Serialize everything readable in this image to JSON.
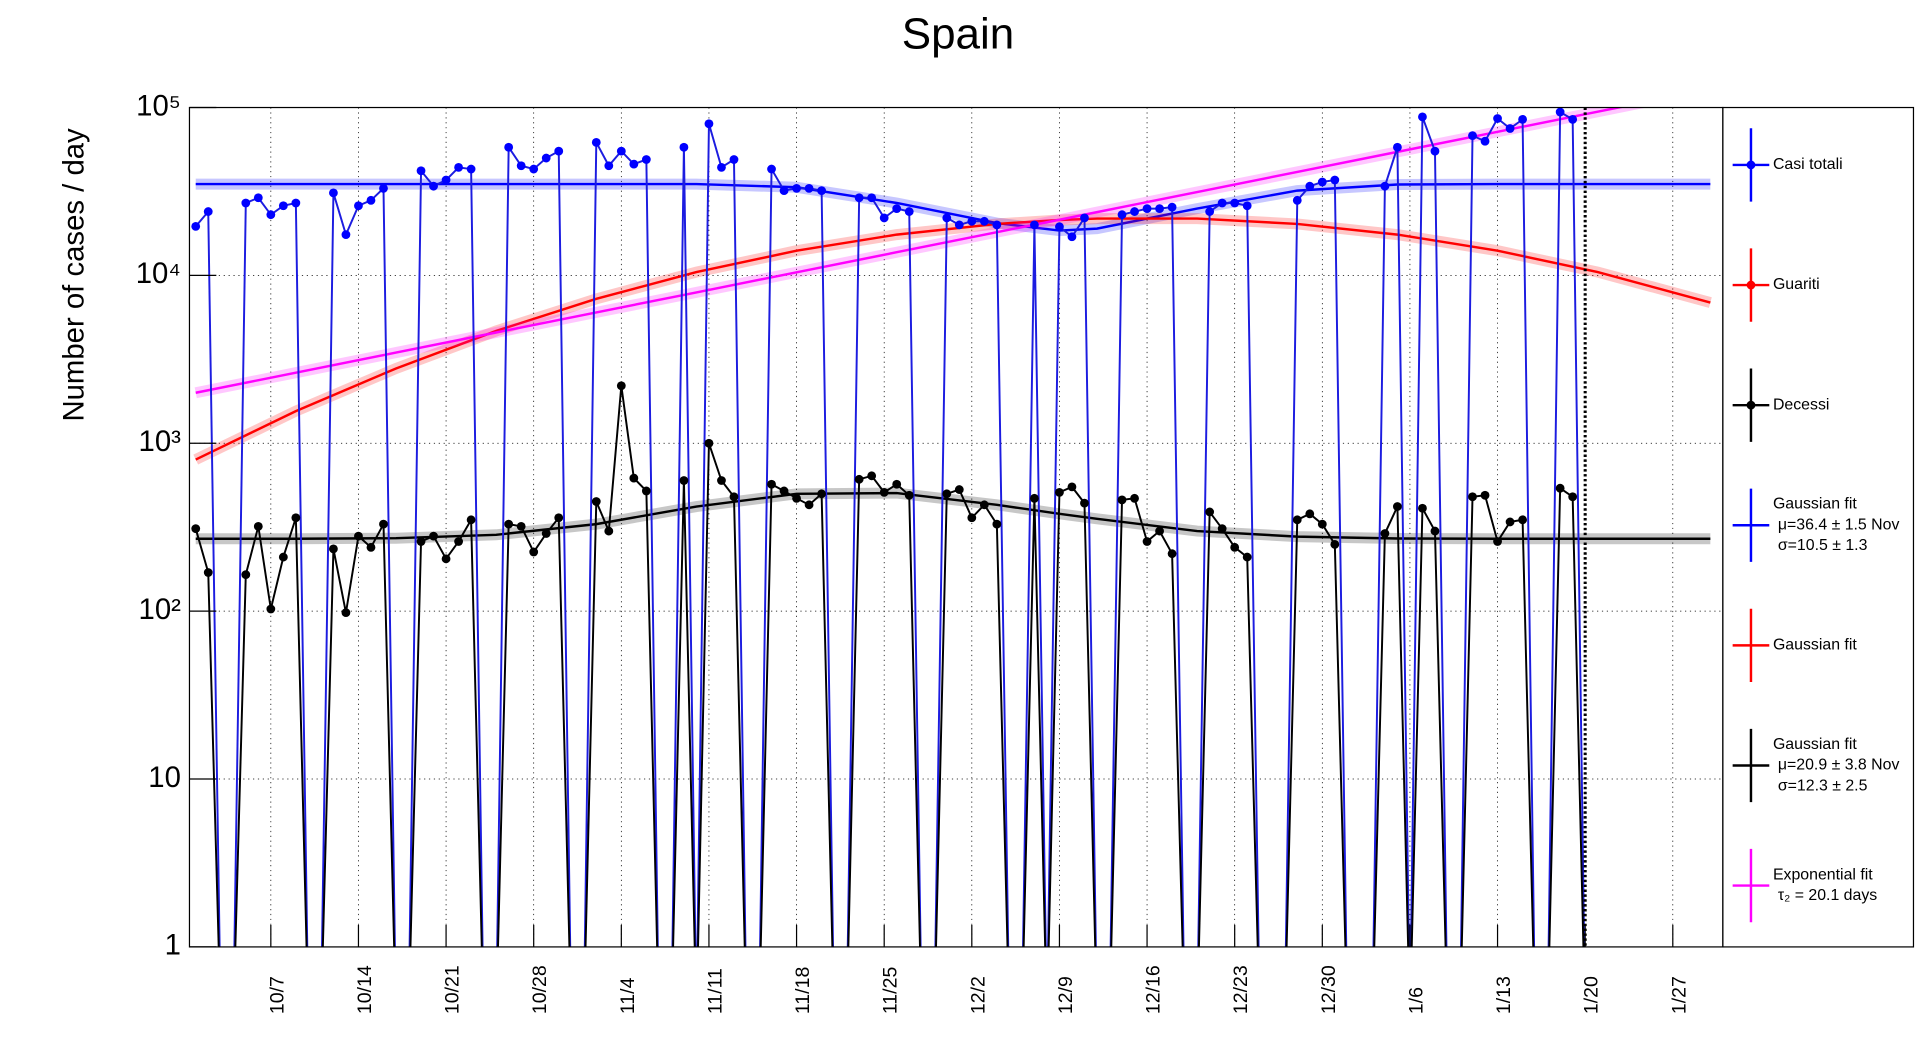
{
  "chart_data": {
    "type": "line",
    "title": "Spain",
    "y_label": "Number of cases / day",
    "log_y": true,
    "grid": true,
    "xlim": [
      -0.5,
      122
    ],
    "ylim": [
      1,
      100000
    ],
    "yticks": [
      1,
      10,
      {
        "value": 100,
        "label": "10²"
      },
      {
        "value": 1000,
        "label": "10³"
      },
      {
        "value": 10000,
        "label": "10⁴"
      },
      {
        "value": 100000,
        "label": "10⁵"
      }
    ],
    "xticks": [
      {
        "value": 6,
        "label": "10/7"
      },
      {
        "value": 13,
        "label": "10/14"
      },
      {
        "value": 20,
        "label": "10/21"
      },
      {
        "value": 27,
        "label": "10/28"
      },
      {
        "value": 34,
        "label": "11/4"
      },
      {
        "value": 41,
        "label": "11/11"
      },
      {
        "value": 48,
        "label": "11/18"
      },
      {
        "value": 55,
        "label": "11/25"
      },
      {
        "value": 62,
        "label": "12/2"
      },
      {
        "value": 69,
        "label": "12/9"
      },
      {
        "value": 76,
        "label": "12/16"
      },
      {
        "value": 83,
        "label": "12/23"
      },
      {
        "value": 90,
        "label": "12/30"
      },
      {
        "value": 97,
        "label": "1/6"
      },
      {
        "value": 104,
        "label": "1/13"
      },
      {
        "value": 111,
        "label": "1/20"
      },
      {
        "value": 118,
        "label": "1/27"
      }
    ],
    "x": [
      0,
      1,
      2,
      3,
      4,
      5,
      6,
      7,
      8,
      9,
      10,
      11,
      12,
      13,
      14,
      15,
      16,
      17,
      18,
      19,
      20,
      21,
      22,
      23,
      24,
      25,
      26,
      27,
      28,
      29,
      30,
      31,
      32,
      33,
      34,
      35,
      36,
      37,
      38,
      39,
      40,
      41,
      42,
      43,
      44,
      45,
      46,
      47,
      48,
      49,
      50,
      51,
      52,
      53,
      54,
      55,
      56,
      57,
      58,
      59,
      60,
      61,
      62,
      63,
      64,
      65,
      66,
      67,
      68,
      69,
      70,
      71,
      72,
      73,
      74,
      75,
      76,
      77,
      78,
      79,
      80,
      81,
      82,
      83,
      84,
      85,
      86,
      87,
      88,
      89,
      90,
      91,
      92,
      93,
      94,
      95,
      96,
      97,
      98,
      99,
      100,
      101,
      102,
      103,
      104,
      105,
      106,
      107,
      108,
      109,
      110,
      111
    ],
    "series": [
      {
        "color": "#0000ff",
        "line_color": "#1c1ce0",
        "values": [
          19600,
          24000,
          0,
          0,
          27000,
          29000,
          23000,
          26000,
          27000,
          0,
          0,
          31000,
          17500,
          26000,
          28000,
          33000,
          0,
          0,
          42000,
          34000,
          37000,
          44000,
          43000,
          0,
          0,
          58000,
          45000,
          43000,
          50000,
          55000,
          0,
          0,
          62000,
          45000,
          55000,
          46000,
          49000,
          0,
          0,
          58000,
          0,
          80000,
          44000,
          49000,
          0,
          0,
          43000,
          32000,
          33000,
          33000,
          32000,
          0,
          0,
          29000,
          29000,
          22000,
          25000,
          24000,
          0,
          0,
          22000,
          20000,
          21000,
          21000,
          20000,
          0,
          0,
          20000,
          0,
          19500,
          17000,
          22000,
          0,
          0,
          23000,
          24000,
          25000,
          25000,
          25500,
          0,
          0,
          24000,
          27000,
          27000,
          26000,
          0,
          0,
          0,
          28000,
          34000,
          36000,
          37000,
          0,
          0,
          0,
          34000,
          58000,
          0,
          88000,
          55000,
          0,
          0,
          68000,
          63000,
          86000,
          75000,
          85000,
          0,
          0,
          94000,
          85000,
          0
        ]
      },
      {
        "color": "#000000",
        "line_color": "#000000",
        "values": [
          310,
          170,
          0,
          0,
          165,
          320,
          103,
          210,
          360,
          0,
          0,
          235,
          98,
          280,
          240,
          330,
          0,
          0,
          260,
          280,
          205,
          260,
          350,
          0,
          0,
          330,
          320,
          225,
          290,
          360,
          0,
          0,
          450,
          300,
          2200,
          620,
          520,
          0,
          0,
          600,
          0,
          1000,
          600,
          480,
          0,
          0,
          570,
          520,
          470,
          430,
          500,
          0,
          0,
          610,
          640,
          510,
          570,
          490,
          0,
          0,
          500,
          530,
          360,
          430,
          330,
          0,
          0,
          470,
          0,
          510,
          550,
          440,
          0,
          0,
          460,
          470,
          260,
          300,
          220,
          0,
          0,
          390,
          310,
          240,
          210,
          0,
          0,
          0,
          350,
          380,
          330,
          250,
          0,
          0,
          0,
          290,
          420,
          0,
          410,
          300,
          0,
          0,
          480,
          490,
          260,
          340,
          350,
          0,
          0,
          540,
          480,
          0
        ]
      }
    ],
    "fit_x": [
      0,
      8,
      16,
      24,
      32,
      40,
      48,
      56,
      64,
      69,
      72,
      80,
      88,
      96,
      104,
      112,
      121
    ],
    "fits": [
      {
        "color": "#0000ff",
        "values": [
          35000,
          35000,
          35000,
          35000,
          35000,
          35000,
          33500,
          27000,
          20500,
          18500,
          19000,
          25000,
          32000,
          34800,
          35000,
          35000,
          35000
        ]
      },
      {
        "color": "#ff0000",
        "values": [
          800,
          1555,
          2790,
          4670,
          7250,
          10470,
          14030,
          17500,
          20260,
          21390,
          21800,
          21800,
          20260,
          17500,
          14030,
          10470,
          6890
        ]
      },
      {
        "color": "#000000",
        "values": [
          270,
          270,
          272,
          285,
          330,
          420,
          500,
          505,
          430,
          380,
          355,
          300,
          278,
          271,
          270,
          270,
          270
        ]
      },
      {
        "color": "#ff00ff",
        "values": [
          2000,
          2634,
          3470,
          4570,
          6020,
          7920,
          10440,
          13740,
          18100,
          21450,
          23820,
          31380,
          41330,
          54430,
          71700,
          94430,
          128800
        ]
      }
    ],
    "vline": 111,
    "legend": [
      {
        "text": [
          "Casi totali"
        ],
        "color": "#0000ff",
        "marker": true
      },
      {
        "text": [
          "Guariti"
        ],
        "color": "#ff0000",
        "marker": true
      },
      {
        "text": [
          "Decessi"
        ],
        "color": "#000000",
        "marker": true
      },
      {
        "text": [
          "Gaussian fit",
          "μ=36.4 ± 1.5 Nov",
          "σ=10.5 ± 1.3"
        ],
        "color": "#0000ff",
        "marker": false
      },
      {
        "text": [
          "Gaussian fit"
        ],
        "color": "#ff0000",
        "marker": false
      },
      {
        "text": [
          "Gaussian fit",
          "μ=20.9 ± 3.8 Nov",
          "σ=12.3 ± 2.5"
        ],
        "color": "#000000",
        "marker": false
      },
      {
        "text": [
          "Exponential fit",
          "τ₂ = 20.1 days"
        ],
        "color": "#ff00ff",
        "marker": false
      }
    ]
  }
}
